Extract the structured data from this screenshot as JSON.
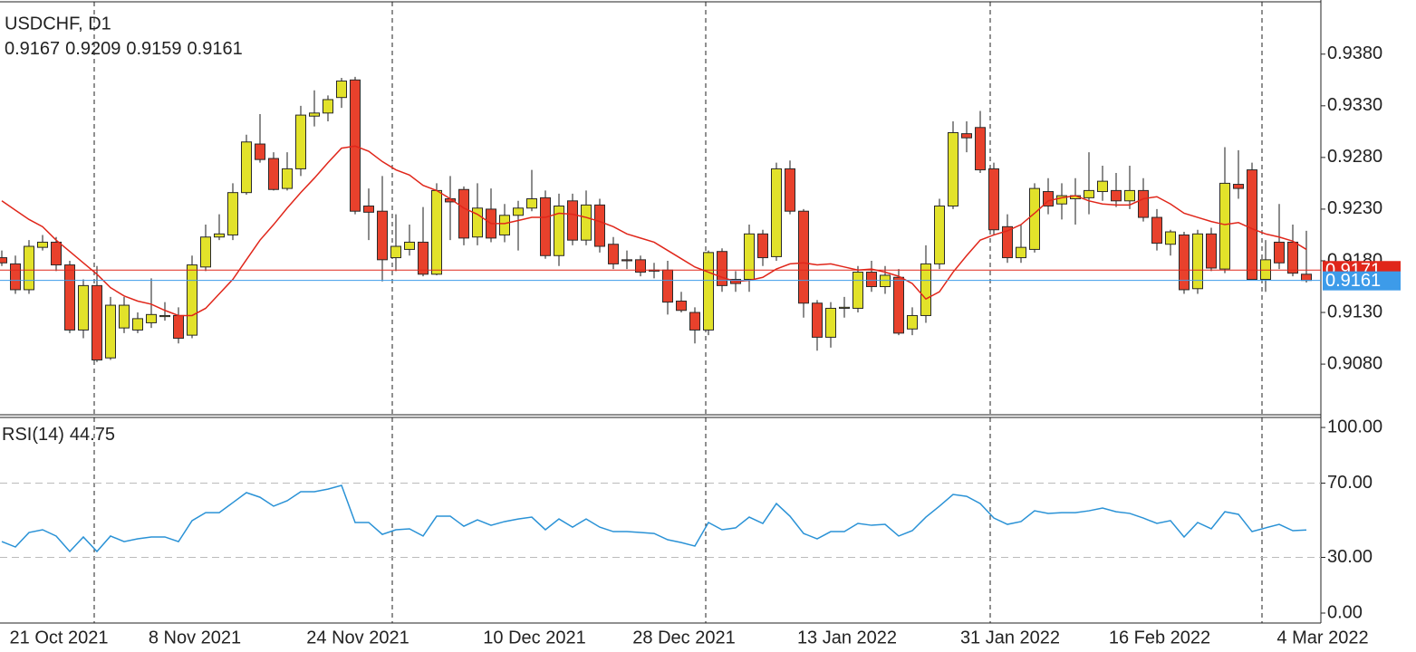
{
  "chart_data": [
    {
      "type": "candlestick",
      "title": "USDCHF, D1",
      "categories": [
        null,
        null,
        null,
        "21 Oct 2021",
        null,
        null,
        null,
        null,
        null,
        null,
        null,
        null,
        null,
        "8 Nov 2021",
        null,
        null,
        null,
        null,
        null,
        null,
        null,
        null,
        null,
        null,
        null,
        "24 Nov 2021",
        null,
        null,
        null,
        null,
        null,
        null,
        null,
        null,
        null,
        null,
        null,
        null,
        "10 Dec 2021",
        null,
        null,
        null,
        null,
        null,
        null,
        null,
        null,
        null,
        null,
        "28 Dec 2021",
        null,
        null,
        null,
        null,
        null,
        null,
        null,
        null,
        null,
        null,
        null,
        "13 Jan 2022",
        null,
        null,
        null,
        null,
        null,
        null,
        null,
        null,
        null,
        null,
        null,
        "31 Jan 2022",
        null,
        null,
        null,
        null,
        null,
        null,
        null,
        null,
        null,
        null,
        "16 Feb 2022",
        null,
        null,
        null,
        null,
        null,
        null,
        null,
        null,
        null,
        null,
        null,
        "4 Mar 2022"
      ],
      "open": [
        0.9183,
        0.9177,
        0.9152,
        0.9193,
        0.9198,
        0.9176,
        0.9113,
        0.9156,
        0.9086,
        0.9115,
        0.9113,
        0.912,
        0.9126,
        0.9127,
        0.9108,
        0.9174,
        0.9203,
        0.9205,
        0.9246,
        0.9293,
        0.9279,
        0.925,
        0.9269,
        0.932,
        0.9323,
        0.9338,
        0.9355,
        0.9233,
        0.9228,
        0.9183,
        0.9191,
        0.9198,
        0.9167,
        0.924,
        0.9249,
        0.9203,
        0.923,
        0.9205,
        0.9224,
        0.9231,
        0.9241,
        0.9185,
        0.9238,
        0.92,
        0.9234,
        0.9196,
        0.9181,
        0.9181,
        0.9171,
        0.9171,
        0.9141,
        0.913,
        0.9113,
        0.9189,
        0.9162,
        0.9162,
        0.9206,
        0.9184,
        0.9269,
        0.9228,
        0.9139,
        0.9106,
        0.9134,
        0.9134,
        0.9169,
        0.9155,
        0.9164,
        0.9114,
        0.9127,
        0.9177,
        0.9233,
        0.9303,
        0.9309,
        0.9269,
        0.9213,
        0.9183,
        0.9191,
        0.9247,
        0.9235,
        0.924,
        0.9241,
        0.9247,
        0.9248,
        0.9238,
        0.9248,
        0.9222,
        0.9196,
        0.9205,
        0.9153,
        0.9206,
        0.9172,
        0.9254,
        0.9268,
        0.9162,
        0.9198,
        0.9198,
        0.9167
      ],
      "high": [
        0.919,
        0.9185,
        0.92,
        0.9205,
        0.9203,
        0.918,
        0.9162,
        0.9175,
        0.9145,
        0.9145,
        0.913,
        0.9163,
        0.914,
        0.9135,
        0.9185,
        0.9215,
        0.9225,
        0.9255,
        0.9302,
        0.9322,
        0.9285,
        0.9285,
        0.933,
        0.9345,
        0.934,
        0.9357,
        0.9358,
        0.925,
        0.9262,
        0.9225,
        0.9215,
        0.9232,
        0.9255,
        0.9262,
        0.9252,
        0.9255,
        0.925,
        0.9235,
        0.9238,
        0.9268,
        0.9248,
        0.9245,
        0.9245,
        0.9248,
        0.924,
        0.9203,
        0.919,
        0.9185,
        0.9178,
        0.918,
        0.915,
        0.9135,
        0.919,
        0.9192,
        0.917,
        0.9215,
        0.921,
        0.9275,
        0.9277,
        0.923,
        0.9142,
        0.914,
        0.9145,
        0.9175,
        0.918,
        0.9175,
        0.9172,
        0.9135,
        0.9195,
        0.924,
        0.9315,
        0.9315,
        0.9325,
        0.9275,
        0.9225,
        0.9215,
        0.9255,
        0.926,
        0.9255,
        0.926,
        0.9285,
        0.9272,
        0.9265,
        0.9272,
        0.926,
        0.923,
        0.921,
        0.9208,
        0.921,
        0.9212,
        0.929,
        0.9287,
        0.9275,
        0.92,
        0.9235,
        0.9215,
        0.9209
      ],
      "low": [
        0.9175,
        0.9148,
        0.9148,
        0.919,
        0.917,
        0.911,
        0.9105,
        0.9082,
        0.9084,
        0.911,
        0.911,
        0.9115,
        0.9122,
        0.91,
        0.9105,
        0.917,
        0.92,
        0.92,
        0.9244,
        0.9275,
        0.9248,
        0.9248,
        0.9262,
        0.931,
        0.9315,
        0.9328,
        0.9225,
        0.92,
        0.916,
        0.917,
        0.9185,
        0.9165,
        0.9166,
        0.92,
        0.9195,
        0.9195,
        0.9198,
        0.9198,
        0.919,
        0.9228,
        0.9182,
        0.9175,
        0.9195,
        0.9195,
        0.9188,
        0.9172,
        0.9172,
        0.9165,
        0.9163,
        0.9128,
        0.913,
        0.91,
        0.9108,
        0.915,
        0.915,
        0.915,
        0.9175,
        0.918,
        0.9225,
        0.9125,
        0.9093,
        0.9096,
        0.9125,
        0.913,
        0.915,
        0.9148,
        0.9108,
        0.9108,
        0.912,
        0.9172,
        0.923,
        0.9285,
        0.9265,
        0.9205,
        0.9178,
        0.9178,
        0.9188,
        0.9225,
        0.922,
        0.9215,
        0.9225,
        0.9238,
        0.9232,
        0.923,
        0.9218,
        0.919,
        0.9185,
        0.9148,
        0.9148,
        0.917,
        0.9168,
        0.924,
        0.9162,
        0.915,
        0.9172,
        0.9165,
        0.9159
      ],
      "close": [
        0.9178,
        0.9152,
        0.9194,
        0.9198,
        0.9176,
        0.9113,
        0.9156,
        0.9084,
        0.9137,
        0.9137,
        0.9124,
        0.9128,
        0.9127,
        0.9105,
        0.9176,
        0.9203,
        0.9206,
        0.9246,
        0.9295,
        0.9278,
        0.9249,
        0.9269,
        0.9321,
        0.9323,
        0.9336,
        0.9354,
        0.9228,
        0.9227,
        0.9181,
        0.9194,
        0.9198,
        0.9167,
        0.9248,
        0.9237,
        0.9202,
        0.9231,
        0.9202,
        0.9224,
        0.9231,
        0.924,
        0.9185,
        0.9233,
        0.92,
        0.9234,
        0.9194,
        0.9177,
        0.918,
        0.9169,
        0.917,
        0.914,
        0.9132,
        0.9113,
        0.9188,
        0.9156,
        0.9158,
        0.9206,
        0.9183,
        0.9269,
        0.9228,
        0.9139,
        0.9106,
        0.9134,
        0.9135,
        0.9169,
        0.9155,
        0.9166,
        0.911,
        0.9127,
        0.9177,
        0.9233,
        0.9304,
        0.9299,
        0.9268,
        0.921,
        0.9183,
        0.9193,
        0.925,
        0.9233,
        0.9243,
        0.9243,
        0.9248,
        0.9257,
        0.9238,
        0.9248,
        0.9222,
        0.9197,
        0.9208,
        0.9152,
        0.9206,
        0.9173,
        0.9255,
        0.925,
        0.9162,
        0.9181,
        0.9178,
        0.9168,
        0.9161
      ],
      "up_color": "#e2e22a",
      "down_color": "#e8412c",
      "ma": {
        "color": "#e0261a",
        "values": [
          0.9238,
          0.9229,
          0.922,
          0.9213,
          0.92,
          0.9189,
          0.9178,
          0.9167,
          0.9154,
          0.9146,
          0.9141,
          0.9138,
          0.9132,
          0.9127,
          0.9127,
          0.9134,
          0.9148,
          0.9162,
          0.9181,
          0.92,
          0.9215,
          0.9231,
          0.9246,
          0.926,
          0.9275,
          0.9289,
          0.9291,
          0.9286,
          0.9276,
          0.9268,
          0.9263,
          0.9253,
          0.9248,
          0.924,
          0.9231,
          0.9225,
          0.9216,
          0.9216,
          0.9219,
          0.9222,
          0.9222,
          0.9226,
          0.9225,
          0.9222,
          0.9218,
          0.9213,
          0.9206,
          0.9202,
          0.9198,
          0.919,
          0.9182,
          0.9174,
          0.9169,
          0.9164,
          0.916,
          0.9161,
          0.9164,
          0.9172,
          0.9177,
          0.9178,
          0.9176,
          0.9177,
          0.9174,
          0.9171,
          0.9172,
          0.9169,
          0.9165,
          0.9158,
          0.9143,
          0.915,
          0.9169,
          0.9185,
          0.92,
          0.9205,
          0.9209,
          0.9215,
          0.9226,
          0.9238,
          0.9241,
          0.9243,
          0.9238,
          0.9235,
          0.9234,
          0.9234,
          0.924,
          0.9242,
          0.9235,
          0.9226,
          0.9222,
          0.9218,
          0.9215,
          0.9217,
          0.9211,
          0.9206,
          0.9203,
          0.9199,
          0.9191
        ]
      },
      "price_lines": [
        {
          "value": 0.9171,
          "color": "#e0261a"
        },
        {
          "value": 0.9161,
          "color": "#3d9be9"
        }
      ],
      "ylim": [
        0.9031,
        0.9428
      ],
      "yticks": [
        {
          "value": 0.938,
          "label": "0.9380"
        },
        {
          "value": 0.933,
          "label": "0.9330"
        },
        {
          "value": 0.928,
          "label": "0.9280"
        },
        {
          "value": 0.923,
          "label": "0.9230"
        },
        {
          "value": 0.918,
          "label": "0.9180"
        },
        {
          "value": 0.913,
          "label": "0.9130"
        },
        {
          "value": 0.908,
          "label": "0.9080"
        }
      ]
    },
    {
      "type": "line",
      "title": "RSI(14)",
      "color": "#2a92d6",
      "values": [
        38.5,
        35.6,
        43.4,
        44.9,
        41.5,
        33.2,
        41.0,
        33.2,
        41.5,
        38.5,
        40.0,
        41.0,
        41.0,
        38.5,
        49.8,
        54.1,
        54.1,
        59.5,
        64.9,
        62.4,
        57.6,
        60.5,
        65.4,
        65.4,
        66.8,
        68.8,
        48.8,
        48.8,
        42.4,
        44.9,
        45.4,
        41.5,
        52.2,
        52.2,
        46.8,
        50.2,
        47.3,
        49.3,
        50.7,
        51.7,
        44.9,
        50.7,
        46.3,
        50.7,
        46.3,
        43.9,
        43.9,
        43.4,
        42.9,
        39.5,
        38.0,
        36.1,
        48.8,
        44.9,
        45.9,
        51.7,
        48.3,
        59.0,
        52.2,
        42.9,
        40.0,
        43.9,
        43.9,
        48.3,
        47.3,
        47.8,
        41.5,
        44.4,
        51.7,
        57.6,
        63.9,
        62.9,
        59.0,
        51.2,
        47.8,
        49.3,
        55.1,
        53.7,
        54.1,
        54.1,
        55.1,
        56.6,
        54.6,
        53.7,
        51.2,
        48.3,
        49.8,
        41.0,
        48.8,
        45.4,
        54.6,
        53.2,
        43.9,
        45.9,
        47.8,
        44.4,
        44.75
      ],
      "levels": [
        70,
        30
      ],
      "ylim": [
        -3.9,
        104.9
      ],
      "yticks": [
        {
          "value": 100,
          "label": "100.00"
        },
        {
          "value": 70,
          "label": "70.00"
        },
        {
          "value": 30,
          "label": "30.00"
        },
        {
          "value": 0,
          "label": "0.00"
        }
      ]
    }
  ]
}
